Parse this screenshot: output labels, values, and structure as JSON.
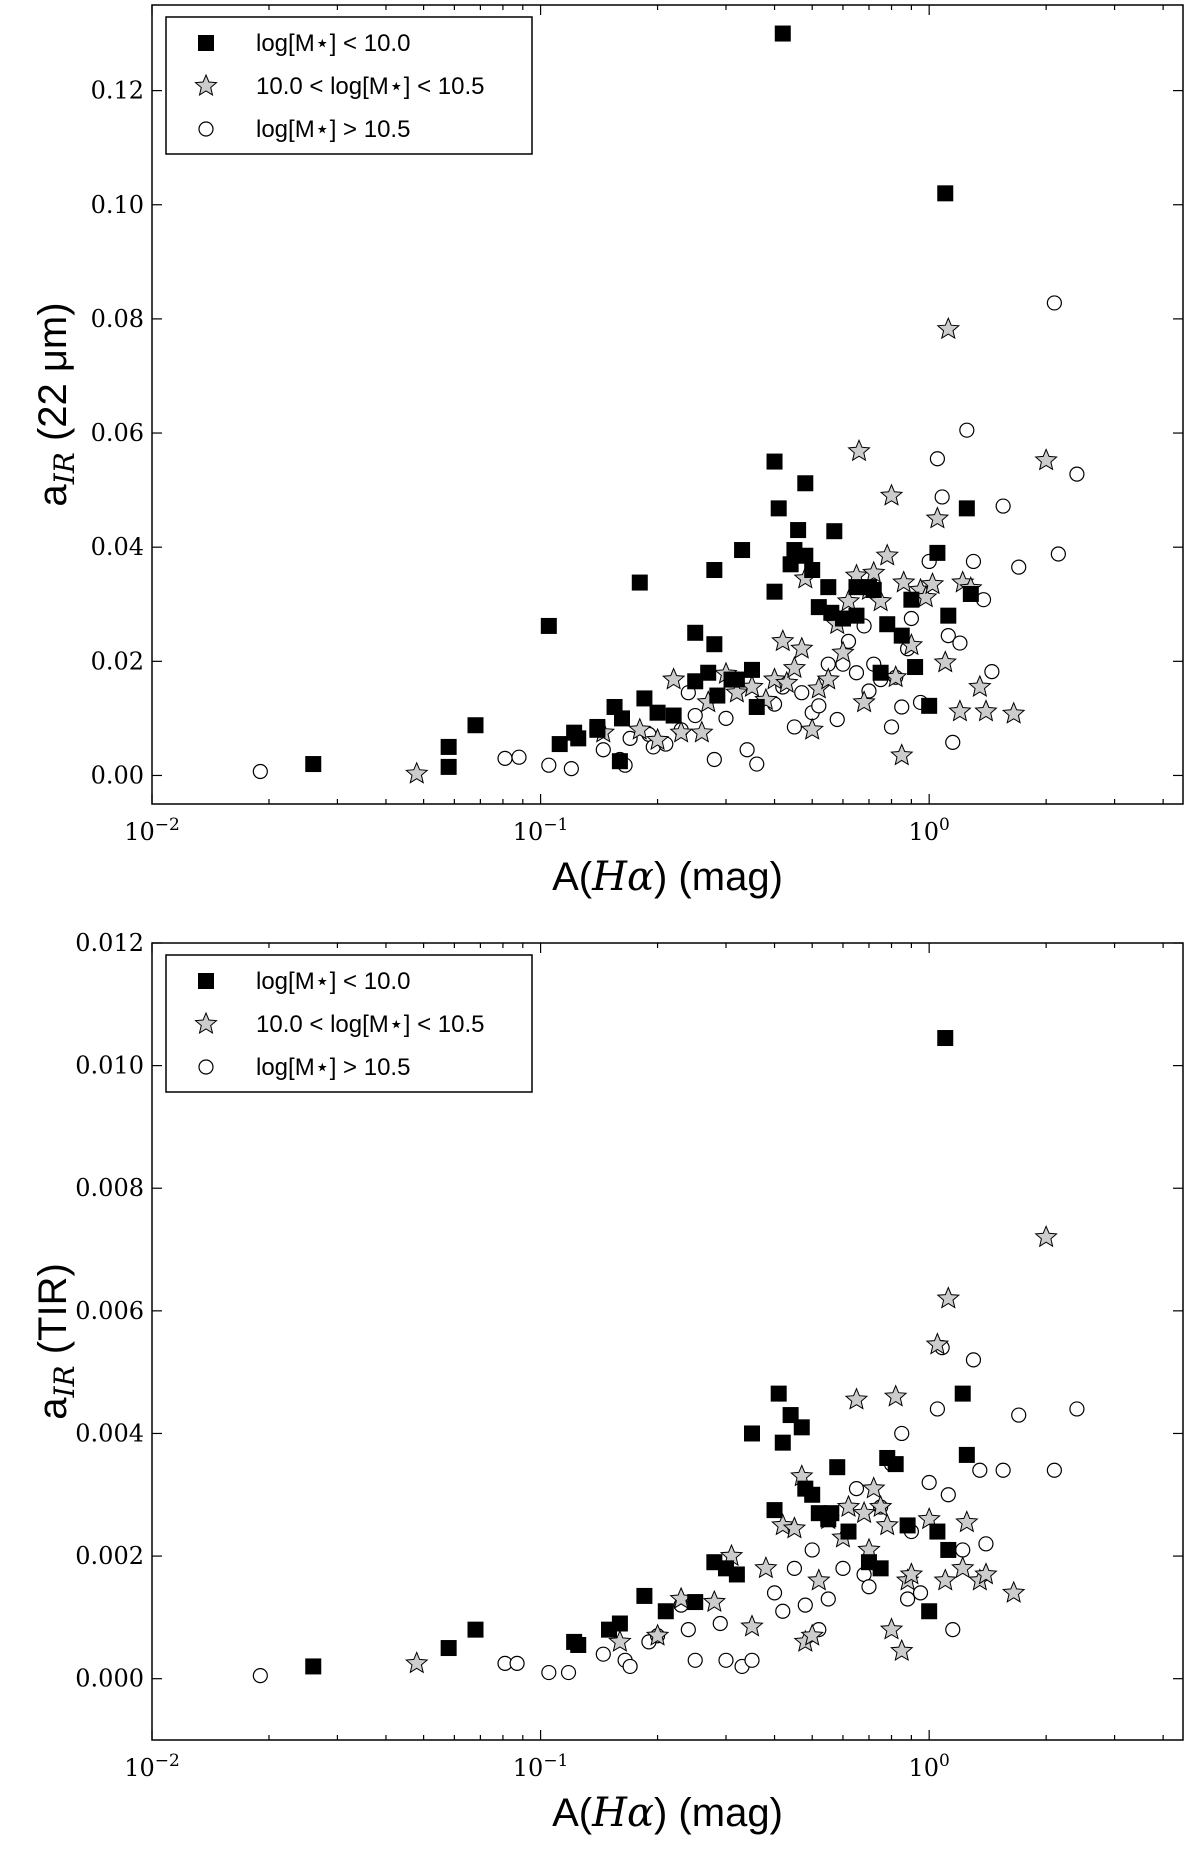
{
  "chart_data": [
    {
      "type": "scatter",
      "title": "",
      "xscale": "log",
      "xlim": [
        0.01,
        4.5
      ],
      "ylim": [
        -0.005,
        0.135
      ],
      "xticks": [
        0.01,
        0.1,
        1
      ],
      "xtick_labels": [
        {
          "base": "10",
          "exp": "−2"
        },
        {
          "base": "10",
          "exp": "−1"
        },
        {
          "base": "10",
          "exp": "0"
        }
      ],
      "yticks": [
        0.0,
        0.02,
        0.04,
        0.06,
        0.08,
        0.1,
        0.12
      ],
      "ytick_labels": [
        "0.00",
        "0.02",
        "0.04",
        "0.06",
        "0.08",
        "0.10",
        "0.12"
      ],
      "xlabel": {
        "pre": "A(",
        "italic": "Hα",
        "post": ")  (mag)"
      },
      "ylabel": {
        "pre": "a",
        "sub": "IR",
        "post": "  (22 μm)"
      },
      "grid": false,
      "legend_position": "upper-left",
      "series": [
        {
          "name": "log[M⋆] < 10.0",
          "marker": "square",
          "color": "#000000",
          "x": [
            0.026,
            0.058,
            0.058,
            0.068,
            0.105,
            0.112,
            0.122,
            0.125,
            0.14,
            0.14,
            0.155,
            0.16,
            0.162,
            0.18,
            0.185,
            0.2,
            0.22,
            0.25,
            0.25,
            0.27,
            0.28,
            0.285,
            0.28,
            0.31,
            0.32,
            0.33,
            0.35,
            0.36,
            0.4,
            0.4,
            0.41,
            0.42,
            0.44,
            0.45,
            0.46,
            0.48,
            0.48,
            0.5,
            0.52,
            0.55,
            0.56,
            0.57,
            0.6,
            0.65,
            0.65,
            0.7,
            0.72,
            0.75,
            0.78,
            0.85,
            0.9,
            0.92,
            1.0,
            1.05,
            1.1,
            1.12,
            1.25,
            1.28
          ],
          "y": [
            0.002,
            0.0015,
            0.005,
            0.0088,
            0.0262,
            0.0055,
            0.0075,
            0.0065,
            0.008,
            0.0085,
            0.012,
            0.0025,
            0.01,
            0.0338,
            0.0135,
            0.011,
            0.0105,
            0.025,
            0.0165,
            0.018,
            0.036,
            0.014,
            0.023,
            0.0168,
            0.0168,
            0.0395,
            0.0185,
            0.012,
            0.055,
            0.0322,
            0.0468,
            0.13,
            0.037,
            0.0395,
            0.043,
            0.0512,
            0.0385,
            0.036,
            0.0295,
            0.033,
            0.0285,
            0.0428,
            0.0275,
            0.033,
            0.028,
            0.033,
            0.0325,
            0.018,
            0.0265,
            0.0245,
            0.0308,
            0.019,
            0.0122,
            0.039,
            0.102,
            0.028,
            0.0468,
            0.0318
          ]
        },
        {
          "name": "10.0 < log[M⋆] < 10.5",
          "marker": "star",
          "color": "#cccccc",
          "x": [
            0.048,
            0.145,
            0.18,
            0.2,
            0.22,
            0.23,
            0.26,
            0.27,
            0.3,
            0.32,
            0.35,
            0.38,
            0.4,
            0.42,
            0.43,
            0.45,
            0.47,
            0.48,
            0.5,
            0.52,
            0.55,
            0.58,
            0.6,
            0.62,
            0.65,
            0.66,
            0.68,
            0.7,
            0.72,
            0.75,
            0.78,
            0.8,
            0.82,
            0.85,
            0.86,
            0.9,
            0.95,
            0.98,
            1.02,
            1.05,
            1.1,
            1.12,
            1.2,
            1.22,
            1.28,
            1.35,
            1.4,
            1.65,
            2.0
          ],
          "y": [
            0.0003,
            0.0075,
            0.008,
            0.0062,
            0.0168,
            0.0075,
            0.0075,
            0.0128,
            0.0178,
            0.0145,
            0.0155,
            0.0132,
            0.0168,
            0.0235,
            0.0162,
            0.0188,
            0.0222,
            0.0345,
            0.008,
            0.0152,
            0.0168,
            0.0265,
            0.0215,
            0.0305,
            0.035,
            0.0568,
            0.0128,
            0.0325,
            0.0355,
            0.0305,
            0.0385,
            0.049,
            0.0172,
            0.0035,
            0.0338,
            0.0228,
            0.0325,
            0.0312,
            0.0335,
            0.045,
            0.0198,
            0.0782,
            0.0112,
            0.0338,
            0.0328,
            0.0155,
            0.0112,
            0.0108,
            0.0552
          ]
        },
        {
          "name": "log[M⋆] > 10.5",
          "marker": "circle",
          "color": "#ffffff",
          "x": [
            0.019,
            0.081,
            0.088,
            0.105,
            0.12,
            0.145,
            0.16,
            0.165,
            0.17,
            0.19,
            0.195,
            0.21,
            0.23,
            0.24,
            0.25,
            0.28,
            0.3,
            0.34,
            0.36,
            0.4,
            0.42,
            0.45,
            0.47,
            0.5,
            0.52,
            0.55,
            0.58,
            0.6,
            0.62,
            0.65,
            0.68,
            0.7,
            0.72,
            0.75,
            0.8,
            0.82,
            0.85,
            0.88,
            0.9,
            0.95,
            1.0,
            1.05,
            1.08,
            1.12,
            1.15,
            1.2,
            1.25,
            1.3,
            1.38,
            1.45,
            1.55,
            1.7,
            2.1,
            2.15,
            2.4
          ],
          "y": [
            0.0007,
            0.003,
            0.0032,
            0.0018,
            0.0012,
            0.0045,
            0.0028,
            0.0018,
            0.0065,
            0.0072,
            0.005,
            0.0055,
            0.008,
            0.0145,
            0.0105,
            0.0028,
            0.01,
            0.0045,
            0.002,
            0.0125,
            0.0155,
            0.0085,
            0.0145,
            0.011,
            0.0122,
            0.0195,
            0.0098,
            0.0195,
            0.0235,
            0.018,
            0.0262,
            0.0148,
            0.0195,
            0.0168,
            0.0085,
            0.0172,
            0.012,
            0.0222,
            0.0275,
            0.0128,
            0.0375,
            0.0555,
            0.0488,
            0.0245,
            0.0058,
            0.0232,
            0.0605,
            0.0375,
            0.0308,
            0.0182,
            0.0472,
            0.0365,
            0.0828,
            0.0388,
            0.0528
          ]
        }
      ]
    },
    {
      "type": "scatter",
      "title": "",
      "xscale": "log",
      "xlim": [
        0.01,
        4.5
      ],
      "ylim": [
        -0.001,
        0.012
      ],
      "xticks": [
        0.01,
        0.1,
        1
      ],
      "xtick_labels": [
        {
          "base": "10",
          "exp": "−2"
        },
        {
          "base": "10",
          "exp": "−1"
        },
        {
          "base": "10",
          "exp": "0"
        }
      ],
      "yticks": [
        0.0,
        0.002,
        0.004,
        0.006,
        0.008,
        0.01,
        0.012
      ],
      "ytick_labels": [
        "0.000",
        "0.002",
        "0.004",
        "0.006",
        "0.008",
        "0.010",
        "0.012"
      ],
      "xlabel": {
        "pre": "A(",
        "italic": "Hα",
        "post": ")  (mag)"
      },
      "ylabel": {
        "pre": "a",
        "sub": "IR",
        "post": "  (TIR)"
      },
      "grid": false,
      "legend_position": "upper-left",
      "series": [
        {
          "name": "log[M⋆] < 10.0",
          "marker": "square",
          "color": "#000000",
          "x": [
            0.026,
            0.058,
            0.068,
            0.122,
            0.125,
            0.15,
            0.16,
            0.185,
            0.21,
            0.25,
            0.28,
            0.3,
            0.32,
            0.35,
            0.4,
            0.41,
            0.42,
            0.44,
            0.47,
            0.48,
            0.5,
            0.52,
            0.55,
            0.56,
            0.58,
            0.62,
            0.7,
            0.75,
            0.78,
            0.82,
            0.88,
            1.0,
            1.05,
            1.1,
            1.12,
            1.22,
            1.25
          ],
          "y": [
            0.0002,
            0.0005,
            0.0008,
            0.0006,
            0.00055,
            0.0008,
            0.0009,
            0.00135,
            0.0011,
            0.00125,
            0.0019,
            0.0018,
            0.0017,
            0.004,
            0.00275,
            0.00465,
            0.00385,
            0.0043,
            0.0041,
            0.0031,
            0.003,
            0.0027,
            0.0026,
            0.0027,
            0.00345,
            0.0024,
            0.0019,
            0.0018,
            0.0036,
            0.0035,
            0.0025,
            0.0011,
            0.0024,
            0.01045,
            0.0021,
            0.00465,
            0.00365
          ]
        },
        {
          "name": "10.0 < log[M⋆] < 10.5",
          "marker": "star",
          "color": "#cccccc",
          "x": [
            0.048,
            0.16,
            0.2,
            0.23,
            0.28,
            0.31,
            0.35,
            0.38,
            0.42,
            0.45,
            0.47,
            0.48,
            0.5,
            0.52,
            0.55,
            0.6,
            0.62,
            0.65,
            0.68,
            0.7,
            0.72,
            0.75,
            0.78,
            0.8,
            0.82,
            0.85,
            0.88,
            0.9,
            1.0,
            1.05,
            1.1,
            1.12,
            1.22,
            1.25,
            1.35,
            1.4,
            1.65,
            2.0
          ],
          "y": [
            0.00025,
            0.0006,
            0.0007,
            0.0013,
            0.00125,
            0.002,
            0.00085,
            0.0018,
            0.0025,
            0.00245,
            0.0033,
            0.0006,
            0.0007,
            0.0016,
            0.0026,
            0.0023,
            0.0028,
            0.00455,
            0.0027,
            0.0021,
            0.0031,
            0.0028,
            0.0025,
            0.0008,
            0.0046,
            0.00045,
            0.0016,
            0.0017,
            0.0026,
            0.00545,
            0.0016,
            0.0062,
            0.0018,
            0.00255,
            0.0016,
            0.0017,
            0.0014,
            0.0072
          ]
        },
        {
          "name": "log[M⋆] > 10.5",
          "marker": "circle",
          "color": "#ffffff",
          "x": [
            0.019,
            0.081,
            0.087,
            0.105,
            0.118,
            0.145,
            0.165,
            0.17,
            0.19,
            0.2,
            0.23,
            0.24,
            0.25,
            0.29,
            0.3,
            0.33,
            0.35,
            0.4,
            0.42,
            0.45,
            0.48,
            0.5,
            0.52,
            0.55,
            0.6,
            0.62,
            0.65,
            0.68,
            0.7,
            0.75,
            0.8,
            0.85,
            0.88,
            0.9,
            0.95,
            1.0,
            1.05,
            1.08,
            1.12,
            1.15,
            1.22,
            1.3,
            1.35,
            1.4,
            1.55,
            1.7,
            2.1,
            2.4
          ],
          "y": [
            5e-05,
            0.00025,
            0.00025,
            0.0001,
            0.0001,
            0.0004,
            0.0003,
            0.0002,
            0.0006,
            0.0007,
            0.0012,
            0.0008,
            0.0003,
            0.0009,
            0.0003,
            0.0002,
            0.0003,
            0.0014,
            0.0011,
            0.0018,
            0.0012,
            0.0021,
            0.0008,
            0.0013,
            0.0018,
            0.0024,
            0.0031,
            0.0017,
            0.0015,
            0.0028,
            0.0035,
            0.004,
            0.0013,
            0.0024,
            0.0014,
            0.0032,
            0.0044,
            0.0054,
            0.003,
            0.0008,
            0.0021,
            0.0052,
            0.0034,
            0.0022,
            0.0034,
            0.0043,
            0.0034,
            0.0044
          ]
        }
      ]
    }
  ]
}
